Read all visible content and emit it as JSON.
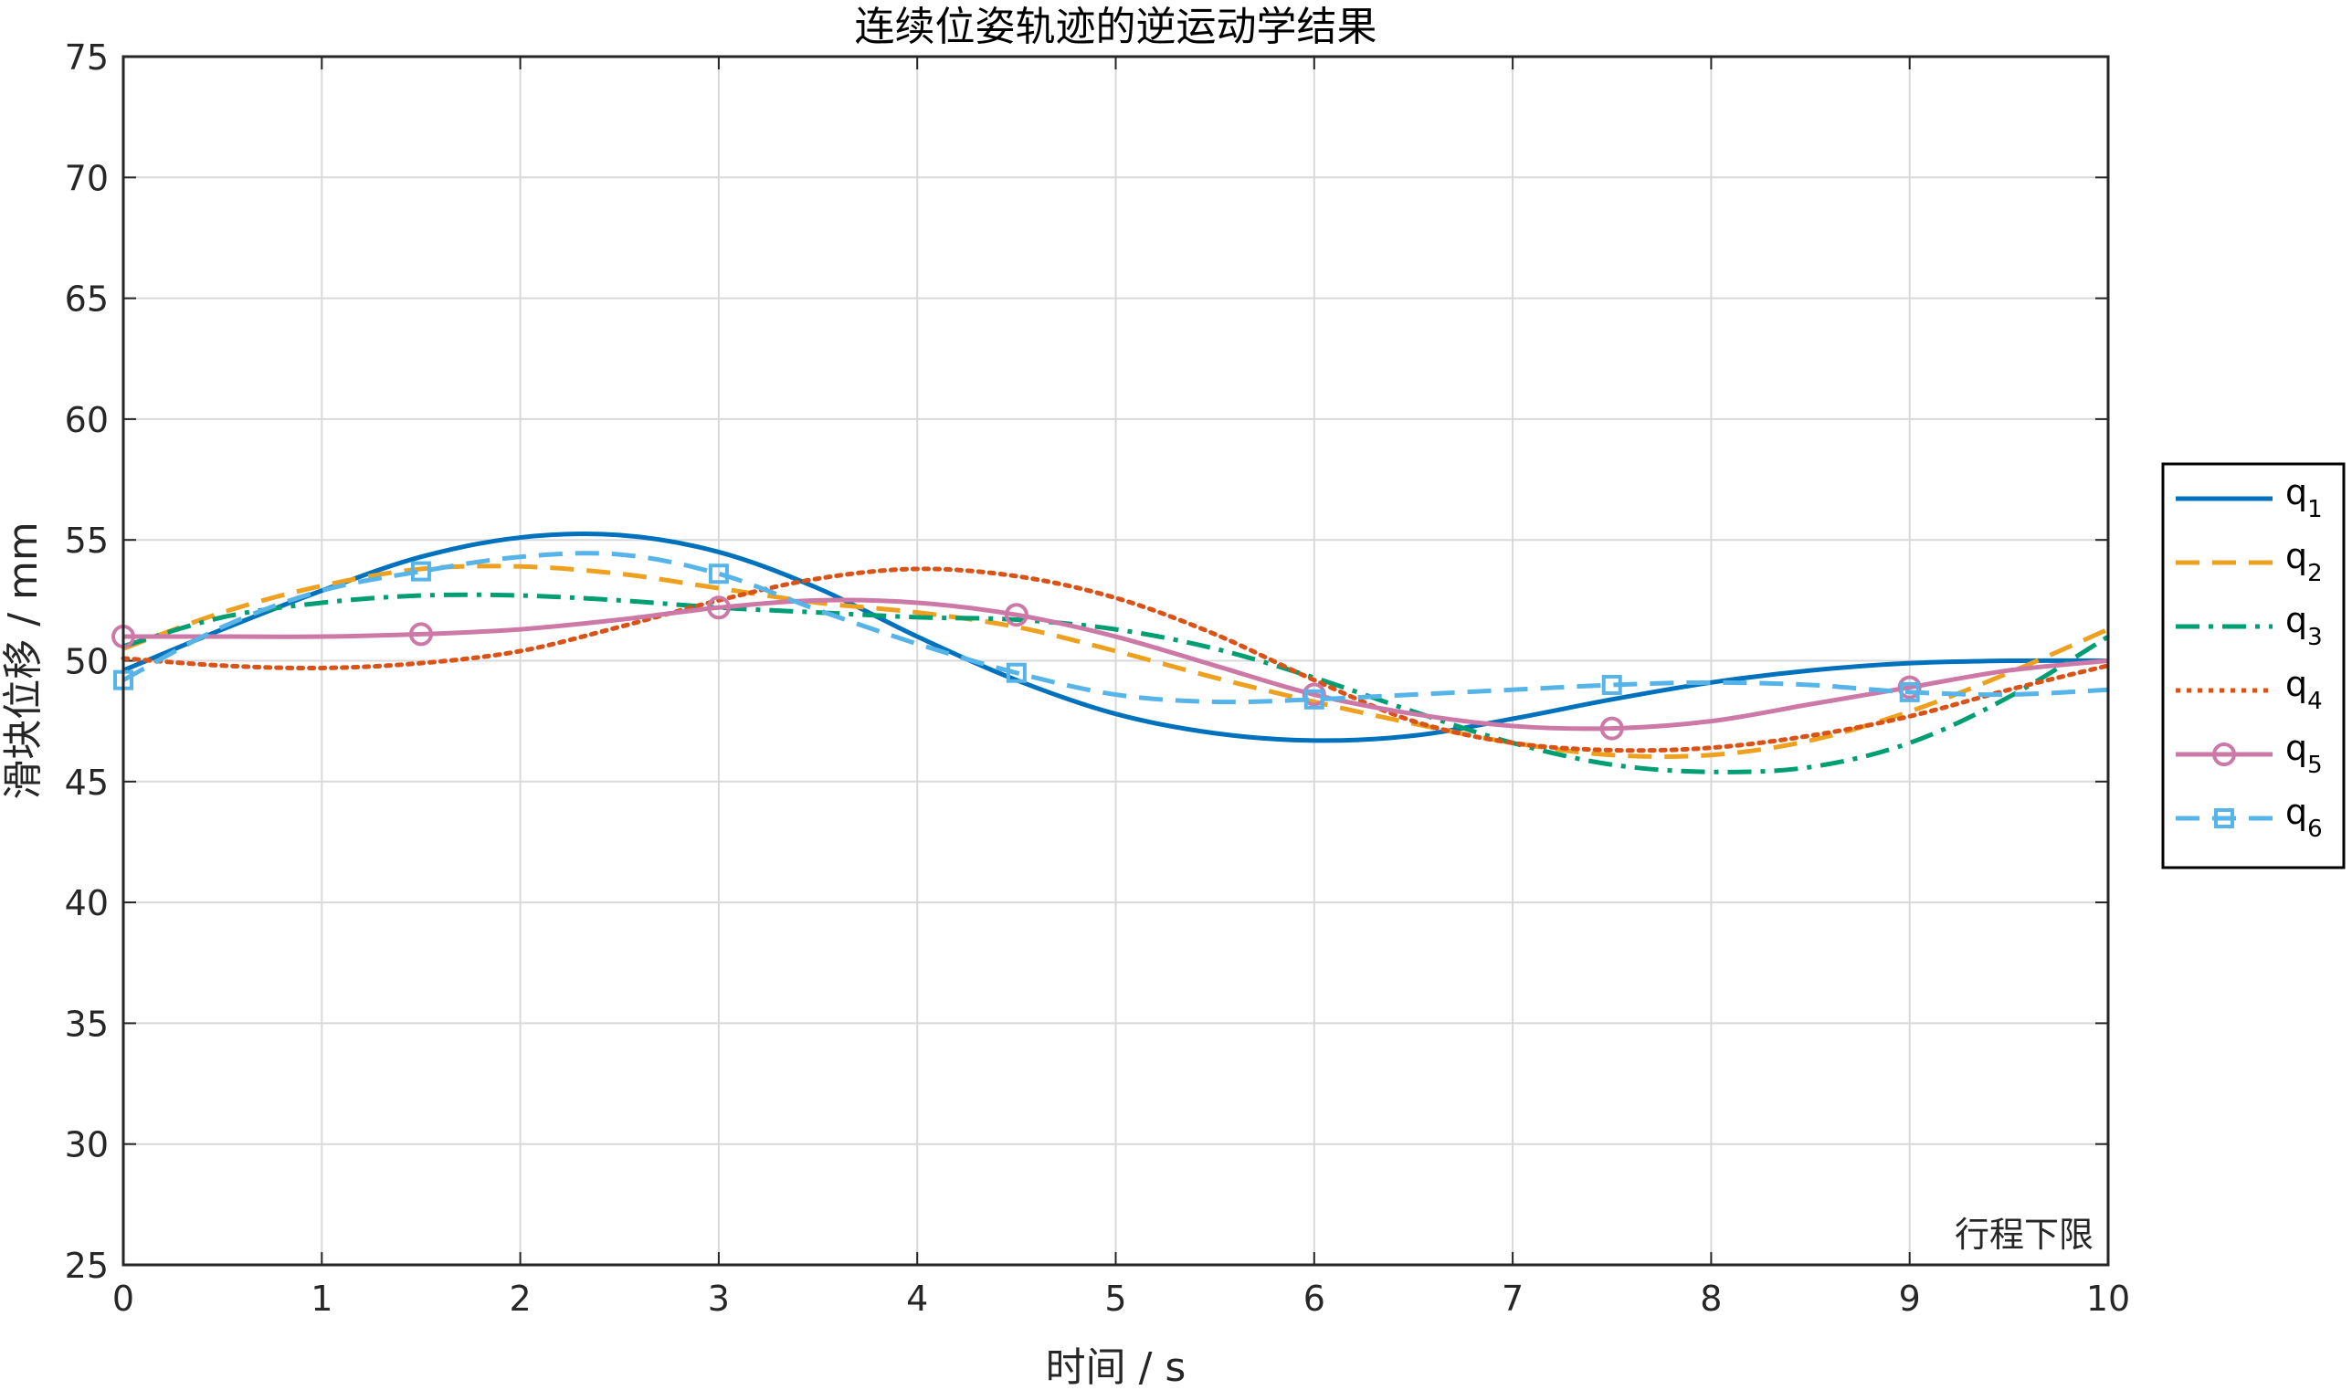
{
  "chart_data": {
    "type": "line",
    "title": "连续位姿轨迹的逆运动学结果",
    "xlabel": "时间 / s",
    "ylabel": "滑块位移 / mm",
    "xlim": [
      0,
      10
    ],
    "ylim": [
      25,
      75
    ],
    "xticks": [
      0,
      1,
      2,
      3,
      4,
      5,
      6,
      7,
      8,
      9,
      10
    ],
    "yticks": [
      25,
      30,
      35,
      40,
      45,
      50,
      55,
      60,
      65,
      70,
      75
    ],
    "grid": true,
    "legend_position": "outside-right",
    "annotation": "行程下限",
    "x": [
      0,
      0.5,
      1,
      1.5,
      2,
      2.5,
      3,
      3.5,
      4,
      4.5,
      5,
      5.5,
      6,
      6.5,
      7,
      7.5,
      8,
      8.5,
      9,
      9.5,
      10
    ],
    "series": [
      {
        "name": "q",
        "subscript": "1",
        "color": "#0072BD",
        "style": "solid",
        "marker": "none",
        "values": [
          49.6,
          51.3,
          52.9,
          54.3,
          55.1,
          55.2,
          54.5,
          53.0,
          51.0,
          49.2,
          47.8,
          47.0,
          46.7,
          46.9,
          47.6,
          48.4,
          49.1,
          49.6,
          49.9,
          50.0,
          50.0
        ]
      },
      {
        "name": "q",
        "subscript": "2",
        "color": "#EDA11E",
        "style": "dashed",
        "marker": "none",
        "values": [
          50.5,
          52.0,
          53.1,
          53.8,
          53.9,
          53.6,
          53.0,
          52.4,
          52.0,
          51.4,
          50.4,
          49.3,
          48.3,
          47.4,
          46.6,
          46.1,
          46.1,
          46.7,
          47.9,
          49.5,
          51.3
        ]
      },
      {
        "name": "q",
        "subscript": "3",
        "color": "#009E73",
        "style": "dashdot",
        "marker": "none",
        "values": [
          50.6,
          51.8,
          52.4,
          52.7,
          52.7,
          52.5,
          52.2,
          52.0,
          51.8,
          51.7,
          51.3,
          50.5,
          49.3,
          47.9,
          46.6,
          45.7,
          45.4,
          45.6,
          46.6,
          48.5,
          51.0
        ]
      },
      {
        "name": "q",
        "subscript": "4",
        "color": "#D95319",
        "style": "dotted",
        "marker": "none",
        "values": [
          50.1,
          49.8,
          49.7,
          49.9,
          50.4,
          51.4,
          52.5,
          53.4,
          53.8,
          53.5,
          52.6,
          51.1,
          49.2,
          47.5,
          46.6,
          46.3,
          46.4,
          46.9,
          47.7,
          48.8,
          49.8
        ]
      },
      {
        "name": "q",
        "subscript": "5",
        "color": "#CC79A7",
        "style": "solid",
        "marker": "circle",
        "values": [
          51.0,
          51.0,
          51.0,
          51.1,
          51.3,
          51.7,
          52.2,
          52.5,
          52.4,
          51.9,
          51.0,
          49.8,
          48.6,
          47.8,
          47.3,
          47.2,
          47.5,
          48.2,
          48.9,
          49.6,
          50.0
        ]
      },
      {
        "name": "q",
        "subscript": "6",
        "color": "#56B4E9",
        "style": "dashed",
        "marker": "square",
        "values": [
          49.2,
          51.4,
          52.9,
          53.7,
          54.3,
          54.4,
          53.6,
          52.1,
          50.7,
          49.5,
          48.6,
          48.3,
          48.4,
          48.6,
          48.8,
          49.0,
          49.1,
          49.0,
          48.7,
          48.6,
          48.8
        ]
      }
    ]
  }
}
